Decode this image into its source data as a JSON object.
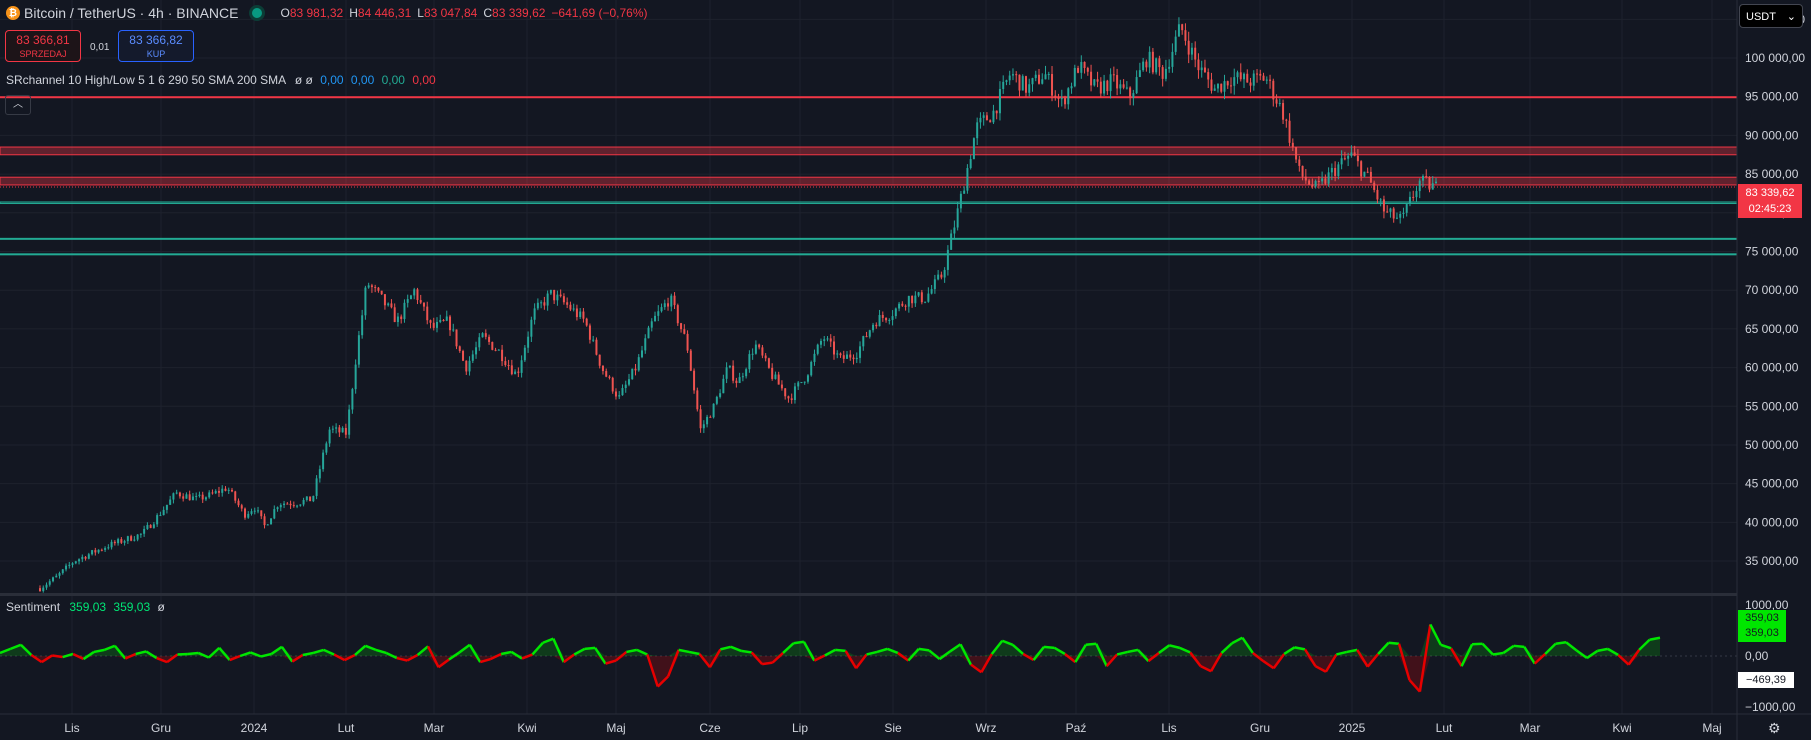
{
  "header": {
    "symbol": "Bitcoin / TetherUS · 4h · BINANCE",
    "ohlc": [
      {
        "k": "O",
        "v": "83 981,32"
      },
      {
        "k": "H",
        "v": "84 446,31"
      },
      {
        "k": "L",
        "v": "83 047,84"
      },
      {
        "k": "C",
        "v": "83 339,62"
      }
    ],
    "change": "−641,69 (−0,76%)"
  },
  "trade": {
    "sell_price": "83 366,81",
    "sell_label": "SPRZEDAJ",
    "spread": "0,01",
    "buy_price": "83 366,82",
    "buy_label": "KUP"
  },
  "indicator": {
    "name": "SRchannel 10 High/Low 5 1 6 290 50 SMA 200 SMA",
    "glyphs": "ø ø",
    "v1": "0,00",
    "v2": "0,00",
    "v3": "0,00",
    "v4": "0,00"
  },
  "sentiment": {
    "name": "Sentiment",
    "v1": "359,03",
    "v2": "359,03",
    "glyph": "ø"
  },
  "currency": "USDT",
  "price_label": {
    "price": "83 339,62",
    "countdown": "02:45:23"
  },
  "sent_labels": {
    "v1": "359,03",
    "v2": "359,03",
    "neg": "−469,39"
  },
  "colors": {
    "up": "#26a69a",
    "down": "#ef5350",
    "bg": "#131722",
    "pos": "#00e600",
    "neg": "#e60000"
  },
  "icons": {
    "settings": "gear-icon",
    "collapse": "chevron-up-icon",
    "coin": "bitcoin-icon"
  },
  "chart_data": [
    {
      "type": "candlestick",
      "title": "Bitcoin / TetherUS · 4h · BINANCE",
      "x_ticks": [
        "Lis",
        "Gru",
        "2024",
        "Lut",
        "Mar",
        "Kwi",
        "Maj",
        "Cze",
        "Lip",
        "Sie",
        "Wrz",
        "Paź",
        "Lis",
        "Gru",
        "2025",
        "Lut",
        "Mar",
        "Kwi",
        "Maj"
      ],
      "y_ticks": [
        "35 000,00",
        "40 000,00",
        "45 000,00",
        "50 000,00",
        "55 000,00",
        "60 000,00",
        "65 000,00",
        "70 000,00",
        "75 000,00",
        "80 000,00",
        "85 000,00",
        "90 000,00",
        "95 000,00",
        "100 000,00",
        "105 000,00"
      ],
      "ylim": [
        31000,
        107500
      ],
      "path_points": [
        [
          0,
          31500
        ],
        [
          0.5,
          33000
        ],
        [
          1,
          35000
        ],
        [
          2,
          37000
        ],
        [
          3,
          38500
        ],
        [
          3.5,
          41000
        ],
        [
          4,
          43800
        ],
        [
          4.6,
          43000
        ],
        [
          5,
          43500
        ],
        [
          5.5,
          44500
        ],
        [
          6,
          41000
        ],
        [
          6.3,
          42000
        ],
        [
          6.6,
          39500
        ],
        [
          7,
          42500
        ],
        [
          7.5,
          42500
        ],
        [
          8,
          43000
        ],
        [
          8.5,
          52000
        ],
        [
          9,
          51500
        ],
        [
          9.3,
          62000
        ],
        [
          9.6,
          71000
        ],
        [
          10,
          69000
        ],
        [
          10.5,
          66000
        ],
        [
          11,
          70000
        ],
        [
          11.5,
          65000
        ],
        [
          12,
          66000
        ],
        [
          12.5,
          60000
        ],
        [
          13,
          64000
        ],
        [
          13.5,
          62000
        ],
        [
          14,
          59000
        ],
        [
          14.5,
          67000
        ],
        [
          15,
          69500
        ],
        [
          15.5,
          68000
        ],
        [
          16,
          66000
        ],
        [
          16.5,
          60000
        ],
        [
          17,
          56000
        ],
        [
          17.5,
          60000
        ],
        [
          18,
          66000
        ],
        [
          18.5,
          69000
        ],
        [
          19,
          63000
        ],
        [
          19.4,
          52000
        ],
        [
          19.8,
          55000
        ],
        [
          20.2,
          60000
        ],
        [
          20.5,
          58000
        ],
        [
          21,
          63000
        ],
        [
          21.5,
          59000
        ],
        [
          22,
          56000
        ],
        [
          22.5,
          59000
        ],
        [
          23,
          64000
        ],
        [
          23.5,
          61000
        ],
        [
          24,
          62000
        ],
        [
          24.5,
          66000
        ],
        [
          25,
          67000
        ],
        [
          25.5,
          69000
        ],
        [
          26,
          69000
        ],
        [
          26.5,
          72000
        ],
        [
          27,
          81000
        ],
        [
          27.5,
          91000
        ],
        [
          28,
          93000
        ],
        [
          28.5,
          98000
        ],
        [
          29,
          96000
        ],
        [
          29.5,
          98000
        ],
        [
          30,
          94000
        ],
        [
          30.5,
          99000
        ],
        [
          31,
          96000
        ],
        [
          31.5,
          97000
        ],
        [
          32,
          95000
        ],
        [
          32.5,
          100000
        ],
        [
          33,
          98000
        ],
        [
          33.5,
          104000
        ],
        [
          34,
          99000
        ],
        [
          34.5,
          96000
        ],
        [
          35,
          97500
        ],
        [
          35.5,
          97000
        ],
        [
          36,
          97500
        ],
        [
          36.5,
          93000
        ],
        [
          37,
          85000
        ],
        [
          37.5,
          83000
        ],
        [
          38,
          85500
        ],
        [
          38.5,
          87500
        ],
        [
          39,
          84500
        ],
        [
          39.5,
          80000
        ],
        [
          40,
          79000
        ],
        [
          40.5,
          84000
        ],
        [
          41,
          83300
        ]
      ]
    },
    {
      "type": "area",
      "title": "Sentiment",
      "y_ticks": [
        "1000,00",
        "0,00",
        "−1000,00"
      ],
      "ylim": [
        -1100,
        1100
      ],
      "values": [
        60,
        140,
        220,
        20,
        -120,
        10,
        -20,
        40,
        -60,
        80,
        120,
        200,
        -50,
        40,
        90,
        -40,
        -120,
        30,
        40,
        60,
        -30,
        160,
        -80,
        0,
        70,
        -10,
        40,
        180,
        -110,
        20,
        60,
        120,
        30,
        -80,
        20,
        200,
        120,
        60,
        -40,
        -90,
        20,
        190,
        -220,
        -70,
        70,
        220,
        -120,
        -60,
        40,
        80,
        -50,
        30,
        260,
        340,
        -120,
        30,
        140,
        160,
        -150,
        -90,
        80,
        120,
        30,
        -600,
        -400,
        120,
        80,
        40,
        -220,
        130,
        180,
        100,
        70,
        -160,
        -130,
        60,
        250,
        280,
        -90,
        10,
        120,
        100,
        -240,
        30,
        80,
        140,
        60,
        -90,
        140,
        110,
        -60,
        90,
        230,
        -170,
        -320,
        40,
        300,
        220,
        40,
        -80,
        180,
        160,
        40,
        -120,
        220,
        240,
        -200,
        30,
        80,
        120,
        -100,
        60,
        210,
        160,
        70,
        -200,
        -300,
        60,
        250,
        360,
        60,
        -100,
        -240,
        40,
        170,
        130,
        -200,
        -310,
        30,
        80,
        120,
        -210,
        40,
        260,
        240,
        -470,
        -700,
        620,
        220,
        150,
        -200,
        230,
        240,
        30,
        60,
        200,
        180,
        -150,
        40,
        240,
        270,
        110,
        -40,
        100,
        140,
        20,
        -170,
        120,
        320,
        359
      ]
    }
  ]
}
